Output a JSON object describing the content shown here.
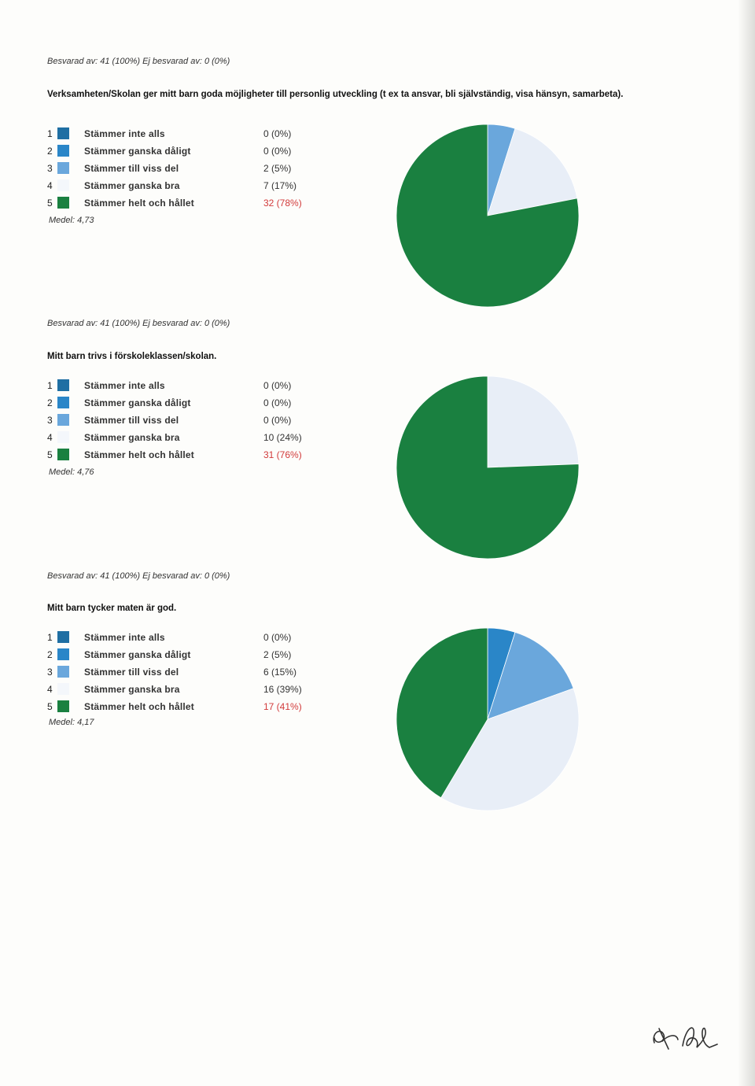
{
  "legend_labels": [
    "Stämmer inte alls",
    "Stämmer ganska dåligt",
    "Stämmer till viss del",
    "Stämmer ganska bra",
    "Stämmer helt och hållet"
  ],
  "colors": [
    "#1f6fa3",
    "#2a86c8",
    "#6aa7dc",
    "#e8eef7",
    "#1a8040"
  ],
  "chart_data": [
    {
      "type": "pie",
      "answered": "Besvarad av: 41 (100%) Ej besvarad av: 0 (0%)",
      "title": "Verksamheten/Skolan ger mitt barn goda möjligheter till personlig utveckling (t ex ta ansvar, bli självständig, visa hänsyn, samarbeta).",
      "categories": [
        "Stämmer inte alls",
        "Stämmer ganska dåligt",
        "Stämmer till viss del",
        "Stämmer ganska bra",
        "Stämmer helt och hållet"
      ],
      "values": [
        0,
        0,
        2,
        7,
        32
      ],
      "value_labels": [
        "0 (0%)",
        "0 (0%)",
        "2 (5%)",
        "7 (17%)",
        "32 (78%)"
      ],
      "mean": "Medel: 4,73"
    },
    {
      "type": "pie",
      "answered": "Besvarad av: 41 (100%) Ej besvarad av: 0 (0%)",
      "title": "Mitt barn trivs i förskoleklassen/skolan.",
      "categories": [
        "Stämmer inte alls",
        "Stämmer ganska dåligt",
        "Stämmer till viss del",
        "Stämmer ganska bra",
        "Stämmer helt och hållet"
      ],
      "values": [
        0,
        0,
        0,
        10,
        31
      ],
      "value_labels": [
        "0 (0%)",
        "0 (0%)",
        "0 (0%)",
        "10 (24%)",
        "31 (76%)"
      ],
      "mean": "Medel: 4,76"
    },
    {
      "type": "pie",
      "answered": "Besvarad av: 41 (100%) Ej besvarad av: 0 (0%)",
      "title": "Mitt barn tycker maten är god.",
      "categories": [
        "Stämmer inte alls",
        "Stämmer ganska dåligt",
        "Stämmer till viss del",
        "Stämmer ganska bra",
        "Stämmer helt och hållet"
      ],
      "values": [
        0,
        2,
        6,
        16,
        17
      ],
      "value_labels": [
        "0 (0%)",
        "2 (5%)",
        "6 (15%)",
        "16 (39%)",
        "17 (41%)"
      ],
      "mean": "Medel: 4,17"
    }
  ]
}
